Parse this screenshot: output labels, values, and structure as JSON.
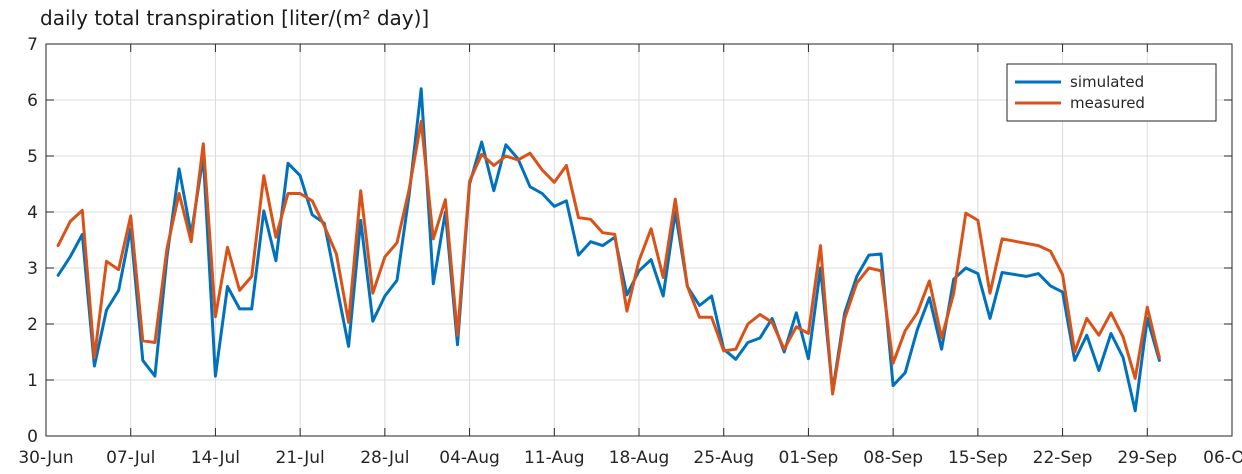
{
  "chart_data": {
    "type": "line",
    "title": "daily total transpiration [liter/(m² day)]",
    "xlabel": "",
    "ylabel": "",
    "x_start_date": "2023-06-30",
    "x_tick_labels": [
      "30-Jun",
      "07-Jul",
      "14-Jul",
      "21-Jul",
      "28-Jul",
      "04-Aug",
      "11-Aug",
      "18-Aug",
      "25-Aug",
      "01-Sep",
      "08-Sep",
      "15-Sep",
      "22-Sep",
      "29-Sep",
      "06-Oct"
    ],
    "ylim": [
      0,
      7
    ],
    "y_tick_labels": [
      "0",
      "1",
      "2",
      "3",
      "4",
      "5",
      "6",
      "7"
    ],
    "grid": true,
    "legend_position": "top-right",
    "series": [
      {
        "name": "simulated",
        "color": "#0072BD",
        "points": [
          [
            "2023-07-01",
            2.87
          ],
          [
            "2023-07-02",
            3.2
          ],
          [
            "2023-07-03",
            3.6
          ],
          [
            "2023-07-04",
            1.25
          ],
          [
            "2023-07-05",
            2.25
          ],
          [
            "2023-07-06",
            2.6
          ],
          [
            "2023-07-07",
            3.7
          ],
          [
            "2023-07-08",
            1.35
          ],
          [
            "2023-07-09",
            1.07
          ],
          [
            "2023-07-10",
            3.2
          ],
          [
            "2023-07-11",
            4.77
          ],
          [
            "2023-07-12",
            3.6
          ],
          [
            "2023-07-13",
            5.0
          ],
          [
            "2023-07-14",
            1.07
          ],
          [
            "2023-07-15",
            2.67
          ],
          [
            "2023-07-16",
            2.27
          ],
          [
            "2023-07-17",
            2.27
          ],
          [
            "2023-07-18",
            4.02
          ],
          [
            "2023-07-19",
            3.13
          ],
          [
            "2023-07-20",
            4.87
          ],
          [
            "2023-07-21",
            4.65
          ],
          [
            "2023-07-22",
            3.95
          ],
          [
            "2023-07-23",
            3.8
          ],
          [
            "2023-07-25",
            1.6
          ],
          [
            "2023-07-26",
            3.85
          ],
          [
            "2023-07-27",
            2.05
          ],
          [
            "2023-07-28",
            2.5
          ],
          [
            "2023-07-29",
            2.78
          ],
          [
            "2023-07-30",
            4.3
          ],
          [
            "2023-07-31",
            6.2
          ],
          [
            "2023-08-01",
            2.72
          ],
          [
            "2023-08-02",
            4.0
          ],
          [
            "2023-08-03",
            1.63
          ],
          [
            "2023-08-04",
            4.5
          ],
          [
            "2023-08-05",
            5.25
          ],
          [
            "2023-08-06",
            4.38
          ],
          [
            "2023-08-07",
            5.2
          ],
          [
            "2023-08-08",
            4.95
          ],
          [
            "2023-08-09",
            4.45
          ],
          [
            "2023-08-10",
            4.33
          ],
          [
            "2023-08-11",
            4.1
          ],
          [
            "2023-08-12",
            4.2
          ],
          [
            "2023-08-13",
            3.23
          ],
          [
            "2023-08-14",
            3.47
          ],
          [
            "2023-08-15",
            3.4
          ],
          [
            "2023-08-16",
            3.55
          ],
          [
            "2023-08-17",
            2.52
          ],
          [
            "2023-08-18",
            2.95
          ],
          [
            "2023-08-19",
            3.15
          ],
          [
            "2023-08-20",
            2.5
          ],
          [
            "2023-08-21",
            4.0
          ],
          [
            "2023-08-22",
            2.67
          ],
          [
            "2023-08-23",
            2.33
          ],
          [
            "2023-08-24",
            2.5
          ],
          [
            "2023-08-25",
            1.55
          ],
          [
            "2023-08-26",
            1.37
          ],
          [
            "2023-08-27",
            1.67
          ],
          [
            "2023-08-28",
            1.75
          ],
          [
            "2023-08-29",
            2.1
          ],
          [
            "2023-08-30",
            1.5
          ],
          [
            "2023-08-31",
            2.2
          ],
          [
            "2023-09-01",
            1.38
          ],
          [
            "2023-09-02",
            3.0
          ],
          [
            "2023-09-03",
            0.8
          ],
          [
            "2023-09-04",
            2.2
          ],
          [
            "2023-09-05",
            2.85
          ],
          [
            "2023-09-06",
            3.23
          ],
          [
            "2023-09-07",
            3.25
          ],
          [
            "2023-09-08",
            0.9
          ],
          [
            "2023-09-09",
            1.13
          ],
          [
            "2023-09-10",
            1.9
          ],
          [
            "2023-09-11",
            2.47
          ],
          [
            "2023-09-12",
            1.55
          ],
          [
            "2023-09-13",
            2.8
          ],
          [
            "2023-09-14",
            3.0
          ],
          [
            "2023-09-15",
            2.9
          ],
          [
            "2023-09-16",
            2.1
          ],
          [
            "2023-09-17",
            2.92
          ],
          [
            "2023-09-19",
            2.85
          ],
          [
            "2023-09-20",
            2.9
          ],
          [
            "2023-09-21",
            2.68
          ],
          [
            "2023-09-22",
            2.57
          ],
          [
            "2023-09-23",
            1.35
          ],
          [
            "2023-09-24",
            1.8
          ],
          [
            "2023-09-25",
            1.17
          ],
          [
            "2023-09-26",
            1.83
          ],
          [
            "2023-09-27",
            1.4
          ],
          [
            "2023-09-28",
            0.45
          ],
          [
            "2023-09-29",
            2.1
          ],
          [
            "2023-09-30",
            1.35
          ]
        ]
      },
      {
        "name": "measured",
        "color": "#D95319",
        "points": [
          [
            "2023-07-01",
            3.4
          ],
          [
            "2023-07-02",
            3.83
          ],
          [
            "2023-07-03",
            4.03
          ],
          [
            "2023-07-04",
            1.4
          ],
          [
            "2023-07-05",
            3.12
          ],
          [
            "2023-07-06",
            2.97
          ],
          [
            "2023-07-07",
            3.93
          ],
          [
            "2023-07-08",
            1.7
          ],
          [
            "2023-07-09",
            1.67
          ],
          [
            "2023-07-10",
            3.35
          ],
          [
            "2023-07-11",
            4.33
          ],
          [
            "2023-07-12",
            3.47
          ],
          [
            "2023-07-13",
            5.22
          ],
          [
            "2023-07-14",
            2.13
          ],
          [
            "2023-07-15",
            3.37
          ],
          [
            "2023-07-16",
            2.6
          ],
          [
            "2023-07-17",
            2.85
          ],
          [
            "2023-07-18",
            4.65
          ],
          [
            "2023-07-19",
            3.55
          ],
          [
            "2023-07-20",
            4.33
          ],
          [
            "2023-07-21",
            4.33
          ],
          [
            "2023-07-22",
            4.2
          ],
          [
            "2023-07-23",
            3.75
          ],
          [
            "2023-07-24",
            3.25
          ],
          [
            "2023-07-25",
            2.03
          ],
          [
            "2023-07-26",
            4.38
          ],
          [
            "2023-07-27",
            2.55
          ],
          [
            "2023-07-28",
            3.2
          ],
          [
            "2023-07-29",
            3.45
          ],
          [
            "2023-07-30",
            4.4
          ],
          [
            "2023-07-31",
            5.62
          ],
          [
            "2023-08-01",
            3.52
          ],
          [
            "2023-08-02",
            4.22
          ],
          [
            "2023-08-03",
            1.8
          ],
          [
            "2023-08-04",
            4.55
          ],
          [
            "2023-08-05",
            5.03
          ],
          [
            "2023-08-06",
            4.83
          ],
          [
            "2023-08-07",
            5.0
          ],
          [
            "2023-08-08",
            4.93
          ],
          [
            "2023-08-09",
            5.05
          ],
          [
            "2023-08-10",
            4.75
          ],
          [
            "2023-08-11",
            4.53
          ],
          [
            "2023-08-12",
            4.83
          ],
          [
            "2023-08-13",
            3.9
          ],
          [
            "2023-08-14",
            3.87
          ],
          [
            "2023-08-15",
            3.63
          ],
          [
            "2023-08-16",
            3.6
          ],
          [
            "2023-08-17",
            2.23
          ],
          [
            "2023-08-18",
            3.13
          ],
          [
            "2023-08-19",
            3.7
          ],
          [
            "2023-08-20",
            2.83
          ],
          [
            "2023-08-21",
            4.23
          ],
          [
            "2023-08-22",
            2.67
          ],
          [
            "2023-08-23",
            2.12
          ],
          [
            "2023-08-24",
            2.12
          ],
          [
            "2023-08-25",
            1.52
          ],
          [
            "2023-08-26",
            1.55
          ],
          [
            "2023-08-27",
            2.0
          ],
          [
            "2023-08-28",
            2.17
          ],
          [
            "2023-08-29",
            2.03
          ],
          [
            "2023-08-30",
            1.55
          ],
          [
            "2023-08-31",
            1.95
          ],
          [
            "2023-09-01",
            1.83
          ],
          [
            "2023-09-02",
            3.4
          ],
          [
            "2023-09-03",
            0.75
          ],
          [
            "2023-09-04",
            2.1
          ],
          [
            "2023-09-05",
            2.73
          ],
          [
            "2023-09-06",
            3.0
          ],
          [
            "2023-09-07",
            2.95
          ],
          [
            "2023-09-08",
            1.3
          ],
          [
            "2023-09-09",
            1.88
          ],
          [
            "2023-09-10",
            2.2
          ],
          [
            "2023-09-11",
            2.77
          ],
          [
            "2023-09-12",
            1.75
          ],
          [
            "2023-09-13",
            2.55
          ],
          [
            "2023-09-14",
            3.98
          ],
          [
            "2023-09-15",
            3.85
          ],
          [
            "2023-09-16",
            2.55
          ],
          [
            "2023-09-17",
            3.52
          ],
          [
            "2023-09-20",
            3.4
          ],
          [
            "2023-09-21",
            3.3
          ],
          [
            "2023-09-22",
            2.88
          ],
          [
            "2023-09-23",
            1.5
          ],
          [
            "2023-09-24",
            2.1
          ],
          [
            "2023-09-25",
            1.8
          ],
          [
            "2023-09-26",
            2.2
          ],
          [
            "2023-09-27",
            1.77
          ],
          [
            "2023-09-28",
            1.03
          ],
          [
            "2023-09-29",
            2.3
          ],
          [
            "2023-09-30",
            1.4
          ]
        ]
      }
    ]
  }
}
